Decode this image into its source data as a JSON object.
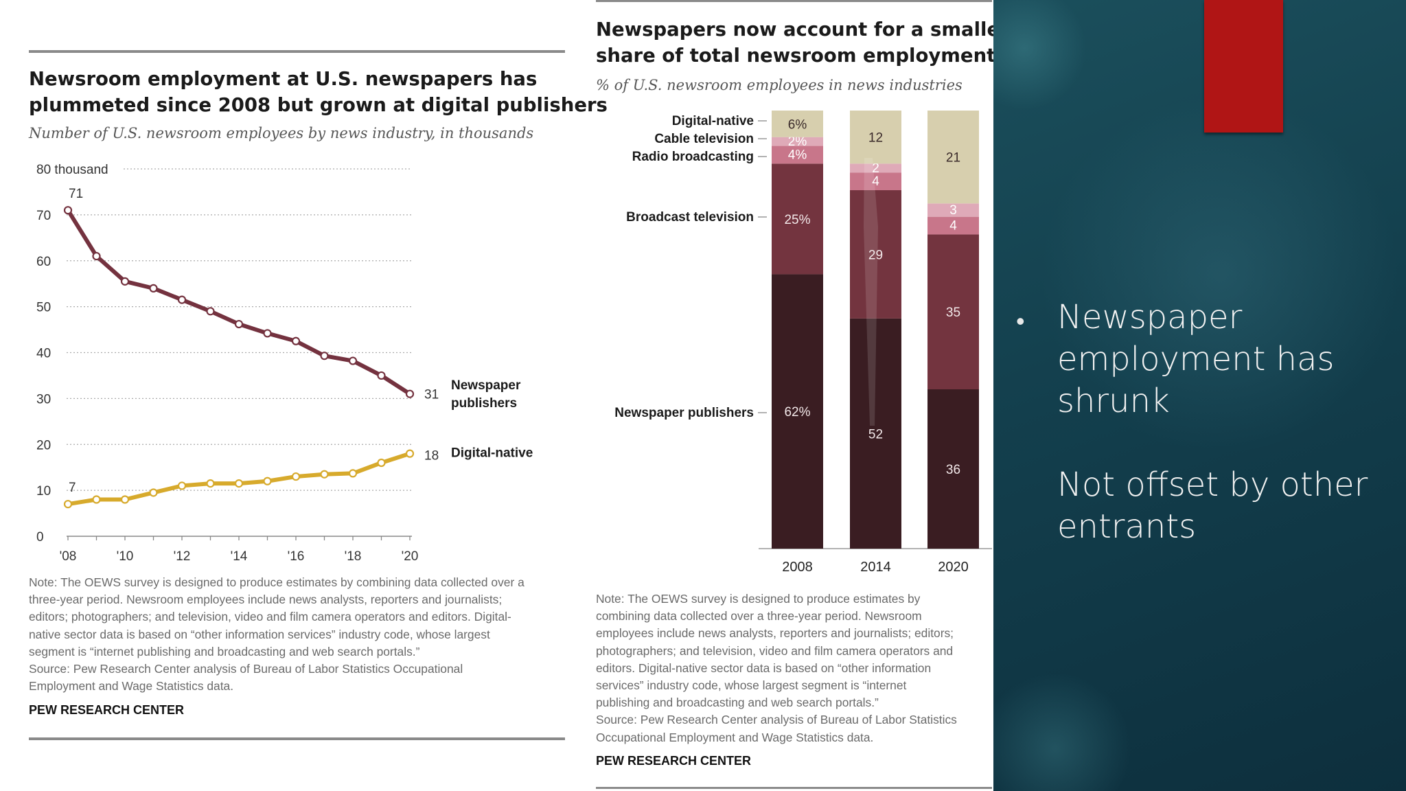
{
  "left_chart": {
    "title_lines": [
      "Newsroom employment at U.S. newspapers has",
      "plummeted since 2008 but grown at digital publishers"
    ],
    "subtitle": "Number of U.S. newsroom employees by news industry, in thousands",
    "note_lines": [
      "Note: The OEWS survey is designed to produce estimates by combining data collected over a",
      "three-year period. Newsroom employees include news analysts, reporters and journalists;",
      "editors; photographers; and television, video and film camera operators and editors. Digital-",
      "native sector data is based on “other information services” industry code, whose largest",
      "segment is “internet publishing and broadcasting and web search portals.”",
      "Source: Pew Research Center analysis of Bureau of Labor Statistics Occupational",
      "Employment and Wage Statistics data."
    ],
    "brand": "PEW RESEARCH CENTER"
  },
  "right_chart": {
    "title_lines": [
      "Newspapers now account for a smaller",
      "share of total newsroom employment"
    ],
    "subtitle": "% of U.S. newsroom employees in news industries",
    "note_lines": [
      "Note: The OEWS survey is designed to produce estimates by",
      "combining data collected over a three-year period. Newsroom",
      "employees include news analysts, reporters and journalists; editors;",
      "photographers; and television, video and film camera operators and",
      "editors. Digital-native sector data is based on “other information",
      "services” industry code, whose largest segment is “internet",
      "publishing and broadcasting and web search portals.”",
      "Source: Pew Research Center analysis of Bureau of Labor Statistics",
      "Occupational Employment and Wage Statistics data."
    ],
    "brand": "PEW RESEARCH CENTER"
  },
  "bullet": {
    "lines": [
      "Newspaper",
      "employment has",
      "shrunk",
      "",
      "Not offset by other",
      "entrants"
    ]
  },
  "colors": {
    "newspaper_line": "#74323f",
    "digital_line": "#d7aa2c",
    "newspaper_bar": "#3a1d22",
    "broadcast_bar": "#73343f",
    "radio_bar": "#c8768a",
    "cable_bar": "#dfaab8",
    "digital_bar": "#d7cfae",
    "panel_bg": "#133f4d",
    "red_tab": "#b01515"
  },
  "chart_data": [
    {
      "type": "line",
      "x": [
        "'08",
        "'09",
        "'10",
        "'11",
        "'12",
        "'13",
        "'14",
        "'15",
        "'16",
        "'17",
        "'18",
        "'19",
        "'20"
      ],
      "x_tick_labels": [
        "'08",
        "'10",
        "'12",
        "'14",
        "'16",
        "'18",
        "'20"
      ],
      "y_tick_labels": [
        "0",
        "10",
        "20",
        "30",
        "40",
        "50",
        "60",
        "70",
        "80 thousand"
      ],
      "ylim": [
        0,
        80
      ],
      "grid": true,
      "series": [
        {
          "name": "Newspaper publishers",
          "label_lines": [
            "Newspaper",
            "publishers"
          ],
          "values": [
            71,
            61,
            55.5,
            54,
            51.5,
            49,
            46.2,
            44.2,
            42.5,
            39.3,
            38.2,
            35,
            31
          ],
          "start_label": "71",
          "end_label": "31"
        },
        {
          "name": "Digital-native",
          "label_lines": [
            "Digital-native"
          ],
          "values": [
            7,
            8,
            8,
            9.5,
            11,
            11.5,
            11.5,
            12,
            13,
            13.5,
            13.7,
            16,
            18
          ],
          "start_label": "7",
          "end_label": "18"
        }
      ]
    },
    {
      "type": "bar",
      "stacked": true,
      "categories": [
        "2008",
        "2014",
        "2020"
      ],
      "series": [
        {
          "name": "Newspaper publishers",
          "values": [
            62,
            52,
            36
          ],
          "labels": [
            "62%",
            "52",
            "36"
          ]
        },
        {
          "name": "Broadcast television",
          "values": [
            25,
            29,
            35
          ],
          "labels": [
            "25%",
            "29",
            "35"
          ]
        },
        {
          "name": "Radio broadcasting",
          "values": [
            4,
            4,
            4
          ],
          "labels": [
            "4%",
            "4",
            "4"
          ]
        },
        {
          "name": "Cable television",
          "values": [
            2,
            2,
            3
          ],
          "labels": [
            "2%",
            "2",
            "3"
          ]
        },
        {
          "name": "Digital-native",
          "values": [
            6,
            12,
            21
          ],
          "labels": [
            "6%",
            "12",
            "21"
          ]
        }
      ],
      "ylim": [
        0,
        100
      ]
    }
  ]
}
